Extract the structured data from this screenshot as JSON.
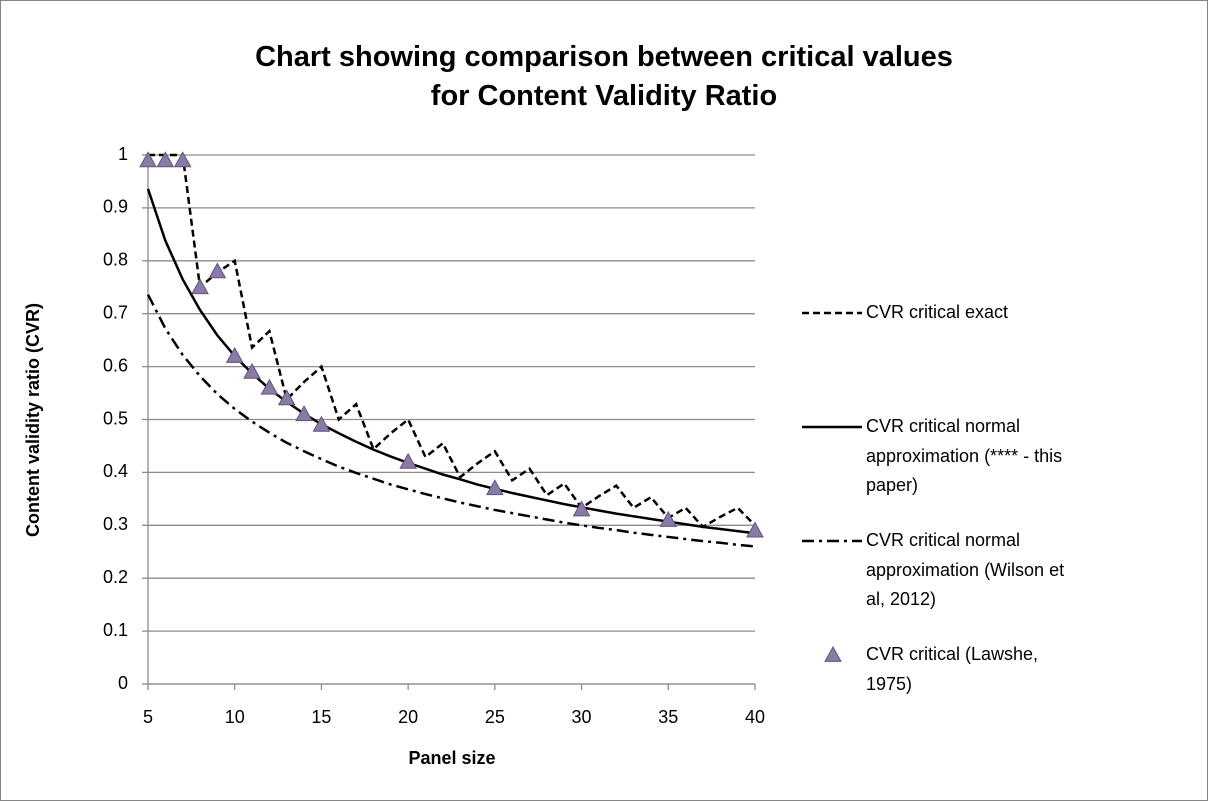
{
  "chart_data": {
    "type": "line",
    "title": "Chart showing comparison between critical values for Content Validity Ratio",
    "x_label": "Panel size",
    "y_label": "Content validity ratio (CVR)",
    "x": [
      5,
      6,
      7,
      8,
      9,
      10,
      11,
      12,
      13,
      14,
      15,
      16,
      17,
      18,
      19,
      20,
      21,
      22,
      23,
      24,
      25,
      26,
      27,
      28,
      29,
      30,
      31,
      32,
      33,
      34,
      35,
      36,
      37,
      38,
      39,
      40
    ],
    "xlim": [
      5,
      40
    ],
    "xticks": [
      5,
      10,
      15,
      20,
      25,
      30,
      35,
      40
    ],
    "ylim": [
      0,
      1
    ],
    "yticks": [
      0,
      0.1,
      0.2,
      0.3,
      0.4,
      0.5,
      0.6,
      0.7,
      0.8,
      0.9,
      1
    ],
    "grid": true,
    "legend": "right",
    "series": [
      {
        "name": "CVR critical exact",
        "color": "#000000",
        "style": "dashed",
        "values": [
          1,
          1,
          1,
          0.75,
          0.778,
          0.8,
          0.636,
          0.667,
          0.538,
          0.571,
          0.6,
          0.5,
          0.529,
          0.444,
          0.474,
          0.5,
          0.429,
          0.455,
          0.391,
          0.417,
          0.44,
          0.385,
          0.407,
          0.357,
          0.379,
          0.333,
          0.355,
          0.375,
          0.333,
          0.353,
          0.314,
          0.333,
          0.297,
          0.316,
          0.333,
          0.3
        ]
      },
      {
        "name": "CVR critical normal approximation (**** - this paper)",
        "color": "#000000",
        "style": "solid",
        "values": [
          0.936,
          0.838,
          0.765,
          0.707,
          0.659,
          0.62,
          0.587,
          0.558,
          0.533,
          0.511,
          0.491,
          0.474,
          0.458,
          0.443,
          0.43,
          0.418,
          0.407,
          0.396,
          0.387,
          0.377,
          0.369,
          0.361,
          0.354,
          0.347,
          0.34,
          0.334,
          0.328,
          0.322,
          0.317,
          0.312,
          0.307,
          0.302,
          0.297,
          0.293,
          0.289,
          0.285
        ]
      },
      {
        "name": "CVR critical normal approximation (Wilson et al, 2012)",
        "color": "#000000",
        "style": "dashdot",
        "values": [
          0.736,
          0.672,
          0.622,
          0.582,
          0.548,
          0.52,
          0.496,
          0.475,
          0.456,
          0.44,
          0.425,
          0.411,
          0.399,
          0.388,
          0.377,
          0.368,
          0.359,
          0.351,
          0.343,
          0.336,
          0.329,
          0.323,
          0.317,
          0.311,
          0.305,
          0.3,
          0.295,
          0.291,
          0.286,
          0.282,
          0.278,
          0.274,
          0.27,
          0.267,
          0.263,
          0.26
        ]
      },
      {
        "name": "CVR critical (Lawshe, 1975)",
        "color": "#8a7aa6",
        "style": "markers",
        "x": [
          5,
          6,
          7,
          8,
          9,
          10,
          11,
          12,
          13,
          14,
          15,
          20,
          25,
          30,
          35,
          40
        ],
        "values": [
          0.99,
          0.99,
          0.99,
          0.75,
          0.78,
          0.62,
          0.59,
          0.56,
          0.54,
          0.51,
          0.49,
          0.42,
          0.37,
          0.33,
          0.31,
          0.29
        ]
      }
    ]
  }
}
